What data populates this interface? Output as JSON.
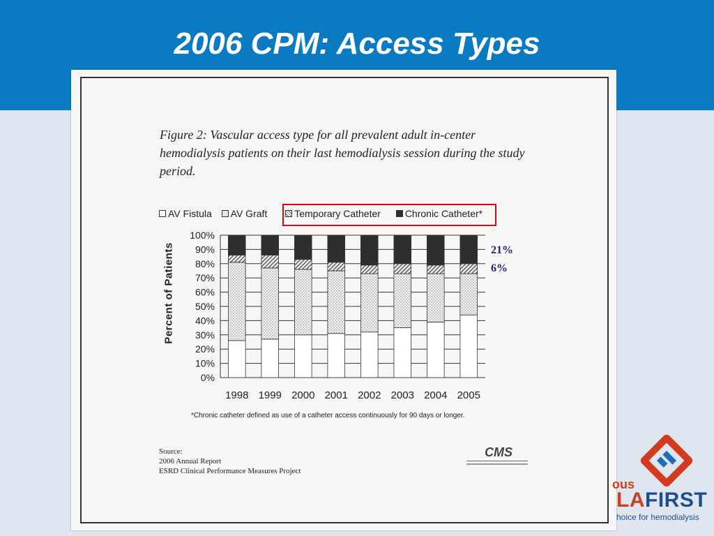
{
  "slide": {
    "title": "2006 CPM: Access Types"
  },
  "figure": {
    "caption": "Figure 2: Vascular access type for all prevalent adult in-center hemodialysis patients on their last hemodialysis session during the study period.",
    "note": "*Chronic catheter defined as use of a catheter access continuously for 90 days or longer.",
    "source_lines": [
      "Source:",
      "2006 Annual Report",
      "ESRD Clinical Performance Measures Project"
    ],
    "logo_text": "CMS"
  },
  "annotations": {
    "chronic_pct": "21%",
    "temporary_pct": "6%"
  },
  "brand": {
    "prefix": "ous",
    "name_highlight": "LA",
    "name_rest": "FIRST",
    "tagline": "hoice for hemodialysis"
  },
  "chart_data": {
    "type": "bar",
    "stacked": true,
    "categories": [
      "1998",
      "1999",
      "2000",
      "2001",
      "2002",
      "2003",
      "2004",
      "2005"
    ],
    "series": [
      {
        "name": "AV Fistula",
        "values": [
          26,
          27,
          30,
          31,
          32,
          35,
          39,
          44
        ],
        "color": "#ffffff",
        "pattern": "none"
      },
      {
        "name": "AV Graft",
        "values": [
          55,
          50,
          46,
          44,
          41,
          38,
          34,
          29
        ],
        "color": "#e6e6e6",
        "pattern": "dots"
      },
      {
        "name": "Temporary Catheter",
        "values": [
          5,
          9,
          7,
          6,
          6,
          7,
          6,
          7
        ],
        "color": "#bdbdbd",
        "pattern": "hatch"
      },
      {
        "name": "Chronic Catheter*",
        "values": [
          14,
          14,
          17,
          19,
          21,
          20,
          21,
          20
        ],
        "color": "#2e2e2e",
        "pattern": "solid"
      }
    ],
    "ylabel": "Percent of Patients",
    "xlabel": "",
    "ylim": [
      0,
      100
    ],
    "yticks": [
      "0%",
      "10%",
      "20%",
      "30%",
      "40%",
      "50%",
      "60%",
      "70%",
      "80%",
      "90%",
      "100%"
    ],
    "grid": true,
    "legend": "top"
  }
}
